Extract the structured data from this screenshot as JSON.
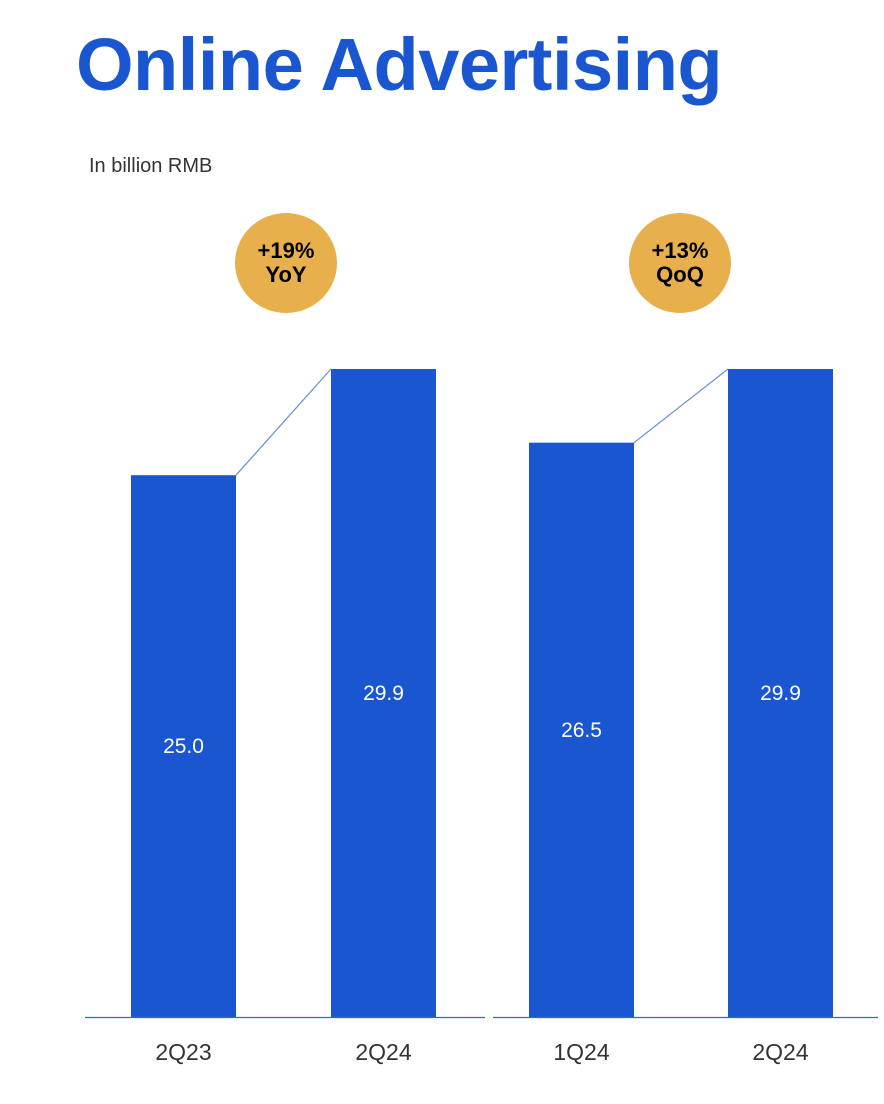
{
  "title": "Online Advertising",
  "unit_label": "In billion RMB",
  "colors": {
    "bar": "#1a56d0",
    "title": "#1a56d0",
    "badge": "#e8b04d",
    "connector": "#6a8fd0",
    "axis": "#3a66c0"
  },
  "chart_data": [
    {
      "type": "bar",
      "categories": [
        "2Q23",
        "2Q24"
      ],
      "values": [
        25.0,
        29.9
      ],
      "labels": [
        "25.0",
        "29.9"
      ],
      "badge": {
        "line1": "+19%",
        "line2": "YoY"
      }
    },
    {
      "type": "bar",
      "categories": [
        "1Q24",
        "2Q24"
      ],
      "values": [
        26.5,
        29.9
      ],
      "labels": [
        "26.5",
        "29.9"
      ],
      "badge": {
        "line1": "+13%",
        "line2": "QoQ"
      }
    }
  ]
}
